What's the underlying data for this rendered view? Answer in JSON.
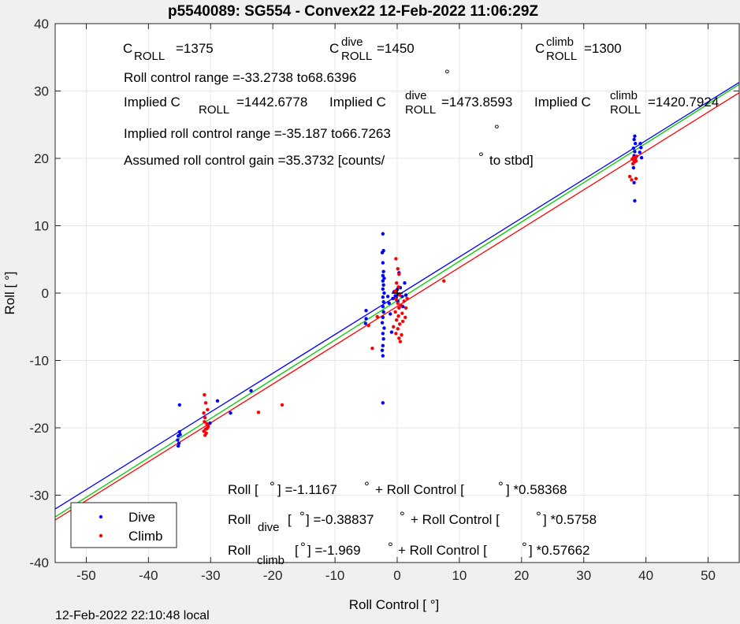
{
  "chart_data": {
    "type": "scatter",
    "title": "p5540089: SG554 - Convex22 12-Feb-2022 11:06:29Z",
    "xlabel": "Roll Control [   °]",
    "ylabel": "Roll [  °]",
    "xlim": [
      -55,
      55
    ],
    "ylim": [
      -40,
      40
    ],
    "xticks": [
      -50,
      -40,
      -30,
      -20,
      -10,
      0,
      10,
      20,
      30,
      40,
      50
    ],
    "yticks": [
      -40,
      -30,
      -20,
      -10,
      0,
      10,
      20,
      30,
      40
    ],
    "grid": true,
    "legend_position": "bottom-left",
    "legend": [
      {
        "label": "Dive",
        "color": "#0000ff"
      },
      {
        "label": "Climb",
        "color": "#ff0000"
      }
    ],
    "fit_lines": [
      {
        "name": "all",
        "color": "#00cc00",
        "intercept": -1.1167,
        "slope": 0.58368
      },
      {
        "name": "dive",
        "color": "#0000ff",
        "intercept": -0.38837,
        "slope": 0.5758
      },
      {
        "name": "climb",
        "color": "#ff0000",
        "intercept": -1.969,
        "slope": 0.57662
      }
    ],
    "series": [
      {
        "name": "Dive",
        "color": "#0000ff",
        "points": [
          [
            -35,
            -16.6
          ],
          [
            -35,
            -20.6
          ],
          [
            -35.2,
            -21.2
          ],
          [
            -35.3,
            -21.8
          ],
          [
            -35.1,
            -22.3
          ],
          [
            -35.2,
            -22.7
          ],
          [
            -34.9,
            -21.0
          ],
          [
            -30.4,
            -19.8
          ],
          [
            -30.1,
            -19.3
          ],
          [
            -30.6,
            -20.1
          ],
          [
            -28.9,
            -16.0
          ],
          [
            -26.8,
            -17.8
          ],
          [
            -23.5,
            -14.5
          ],
          [
            -5,
            -2.6
          ],
          [
            -5,
            -3.8
          ],
          [
            -5.1,
            -4.5
          ],
          [
            -2.3,
            8.8
          ],
          [
            -2.2,
            6.3
          ],
          [
            -2.4,
            6.0
          ],
          [
            -2.3,
            4.5
          ],
          [
            -2.2,
            3.2
          ],
          [
            -2.3,
            2.6
          ],
          [
            -2.1,
            2.2
          ],
          [
            -2.3,
            1.8
          ],
          [
            -2.2,
            1.2
          ],
          [
            -2.3,
            0.6
          ],
          [
            -2.1,
            0.0
          ],
          [
            -2.3,
            -0.6
          ],
          [
            -2.2,
            -1.3
          ],
          [
            -2.3,
            -2.0
          ],
          [
            -2.2,
            -2.8
          ],
          [
            -2.3,
            -3.6
          ],
          [
            -2.4,
            -4.4
          ],
          [
            -2.1,
            -5.2
          ],
          [
            -2.3,
            -6.0
          ],
          [
            -2.2,
            -6.8
          ],
          [
            -2.3,
            -7.8
          ],
          [
            -2.4,
            -8.5
          ],
          [
            -2.3,
            -9.3
          ],
          [
            -2.3,
            -16.3
          ],
          [
            -1.5,
            -0.5
          ],
          [
            -1.3,
            -1.5
          ],
          [
            -1.1,
            -3.1
          ],
          [
            -0.9,
            -5.8
          ],
          [
            -0.5,
            0.2
          ],
          [
            -0.3,
            -0.4
          ],
          [
            0,
            0.5
          ],
          [
            0.2,
            -0.2
          ],
          [
            0.5,
            0.8
          ],
          [
            0.3,
            3.0
          ],
          [
            0.8,
            -0.5
          ],
          [
            1.2,
            1.5
          ],
          [
            1.4,
            -0.3
          ],
          [
            0.9,
            -2.0
          ],
          [
            0.1,
            -1.2
          ],
          [
            -0.7,
            -0.8
          ],
          [
            38.2,
            23.3
          ],
          [
            38.1,
            22.8
          ],
          [
            38.3,
            22.2
          ],
          [
            38.0,
            21.5
          ],
          [
            38.2,
            21.0
          ],
          [
            38.1,
            20.4
          ],
          [
            38.3,
            19.9
          ],
          [
            38.2,
            19.5
          ],
          [
            38.0,
            18.6
          ],
          [
            38.1,
            16.4
          ],
          [
            38.2,
            13.7
          ],
          [
            39.1,
            22.2
          ],
          [
            39.2,
            21.6
          ],
          [
            39.0,
            20.9
          ],
          [
            39.3,
            20.1
          ]
        ]
      },
      {
        "name": "Climb",
        "color": "#ff0000",
        "points": [
          [
            -31,
            -15.1
          ],
          [
            -30.8,
            -16.3
          ],
          [
            -30.5,
            -17.3
          ],
          [
            -31.1,
            -17.8
          ],
          [
            -30.9,
            -18.5
          ],
          [
            -31,
            -19.1
          ],
          [
            -30.6,
            -19.4
          ],
          [
            -30.4,
            -19.7
          ],
          [
            -30.8,
            -20.2
          ],
          [
            -31.1,
            -20.5
          ],
          [
            -30.7,
            -20.8
          ],
          [
            -30.9,
            -21.1
          ],
          [
            -30.5,
            -20.0
          ],
          [
            -22.3,
            -17.7
          ],
          [
            -18.5,
            -16.6
          ],
          [
            -4.6,
            -4.8
          ],
          [
            -4.0,
            -8.2
          ],
          [
            -3.2,
            -3.5
          ],
          [
            -0.2,
            5.1
          ],
          [
            0.1,
            3.6
          ],
          [
            0.3,
            2.8
          ],
          [
            -0.1,
            1.5
          ],
          [
            0.2,
            0.9
          ],
          [
            -0.3,
            0.3
          ],
          [
            0.4,
            -0.3
          ],
          [
            -0.2,
            -0.9
          ],
          [
            0.1,
            -1.5
          ],
          [
            0.3,
            -2.2
          ],
          [
            -0.3,
            -2.8
          ],
          [
            0.2,
            -3.4
          ],
          [
            -0.1,
            -4.0
          ],
          [
            0.4,
            -4.6
          ],
          [
            0.1,
            -5.3
          ],
          [
            -0.2,
            -6.0
          ],
          [
            0.3,
            -6.7
          ],
          [
            0.5,
            -7.2
          ],
          [
            0.7,
            -6.2
          ],
          [
            -0.6,
            -5.0
          ],
          [
            0.8,
            -3.0
          ],
          [
            1.1,
            -1.2
          ],
          [
            1.4,
            -2.2
          ],
          [
            1.6,
            -0.8
          ],
          [
            1.3,
            -3.6
          ],
          [
            0.9,
            -4.2
          ],
          [
            0.6,
            -1.8
          ],
          [
            7.5,
            1.8
          ],
          [
            37.4,
            17.3
          ],
          [
            37.7,
            16.8
          ],
          [
            38.4,
            17.0
          ],
          [
            37.9,
            19.2
          ],
          [
            38.1,
            19.5
          ],
          [
            38.3,
            19.8
          ],
          [
            38.0,
            20.1
          ],
          [
            38.4,
            19.6
          ],
          [
            37.8,
            19.9
          ],
          [
            38.5,
            20.3
          ]
        ]
      }
    ],
    "origin_marker": {
      "x": 0,
      "y": 0,
      "symbol": "+"
    }
  },
  "annotations": {
    "c_roll": {
      "base": "C",
      "sub": "ROLL",
      "rest": "=1375"
    },
    "c_roll_dive": {
      "base": "C",
      "sup": "dive",
      "sub": "ROLL",
      "rest": "=1450"
    },
    "c_roll_climb": {
      "base": "C",
      "sup": "climb",
      "sub": "ROLL",
      "rest": "=1300"
    },
    "roll_control_range": "Roll control range =-33.2738 to68.6396",
    "implied_c_all": {
      "prefix": "Implied C",
      "sub": "ROLL",
      "rest": "=1442.6778"
    },
    "implied_c_dive": {
      "prefix": "Implied C",
      "sup": "dive",
      "sub": "ROLL",
      "rest": "=1473.8593"
    },
    "implied_c_climb": {
      "prefix": "Implied C",
      "sup": "climb",
      "sub": "ROLL",
      "rest": "=1420.7924"
    },
    "implied_range": "Implied roll control range =-35.187 to66.7263",
    "gain": "Assumed roll control gain =35.3732 [counts/",
    "gain_tail": "to stbd]",
    "fit_all": {
      "a": "Roll [  ",
      "b": "] =-1.1167",
      "c": "+ Roll Control [",
      "d": "] *0.58368"
    },
    "fit_dive": {
      "a": "Roll",
      "sub": "dive",
      "b": "[  ",
      "c": "] =-0.38837",
      "d": "+ Roll Control [",
      "e": "] *0.5758"
    },
    "fit_climb": {
      "a": "Roll",
      "sub": "climb",
      "b": "[  ",
      "c": "] =-1.969",
      "d": "+ Roll Control [",
      "e": "] *0.57662"
    },
    "deg": "°"
  },
  "footer": "12-Feb-2022 22:10:48 local"
}
